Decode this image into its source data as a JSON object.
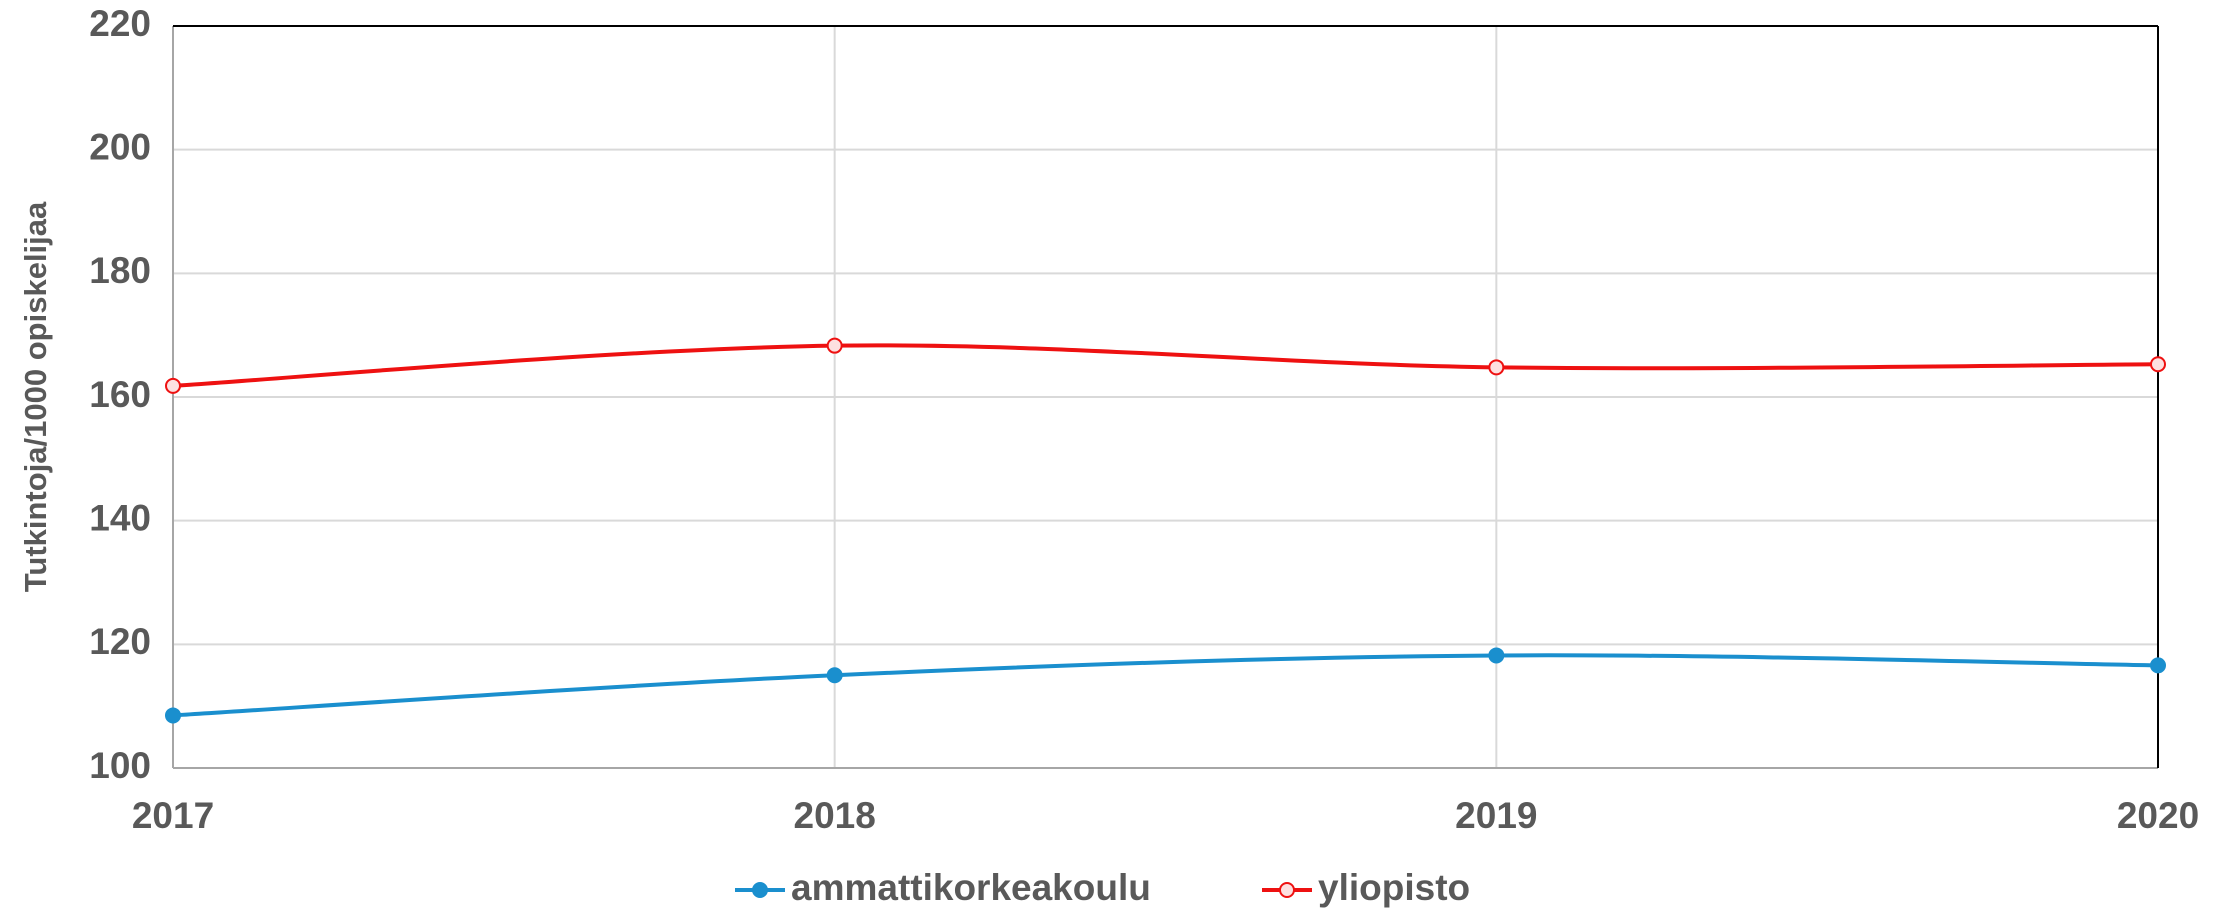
{
  "chart_data": {
    "type": "line",
    "y_label": "Tutkintoja/1000 opiskelijaa",
    "categories": [
      "2017",
      "2018",
      "2019",
      "2020"
    ],
    "series": [
      {
        "name": "ammattikorkeakoulu",
        "color": "#1a8fce",
        "values": [
          108.5,
          115,
          118.2,
          116.6
        ]
      },
      {
        "name": "yliopisto",
        "color": "#ee1111",
        "values": [
          161.8,
          168.3,
          164.8,
          165.3
        ]
      }
    ],
    "ylim": [
      100,
      220
    ],
    "yticks": [
      100,
      120,
      140,
      160,
      180,
      200,
      220
    ],
    "grid": true
  }
}
